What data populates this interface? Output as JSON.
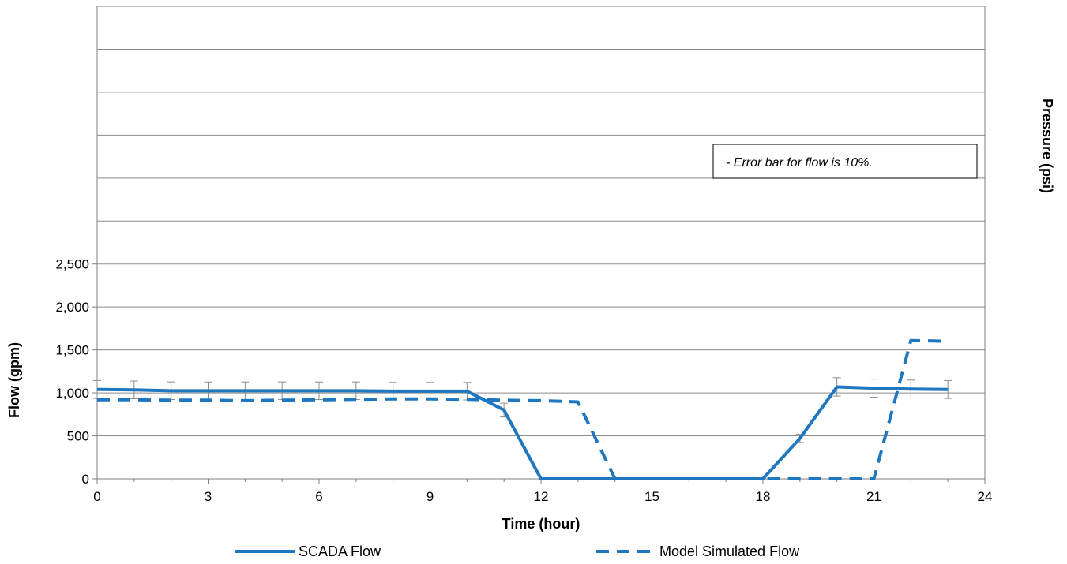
{
  "chart_data": {
    "type": "line",
    "xlabel": "Time (hour)",
    "ylabel": "Flow (gpm)",
    "y2label": "Pressure (psi)",
    "xlim": [
      0,
      24
    ],
    "ylim": [
      0,
      5500
    ],
    "x_ticks": [
      0,
      3,
      6,
      9,
      12,
      15,
      18,
      21,
      24
    ],
    "x_tick_labels": [
      "0",
      "3",
      "6",
      "9",
      "12",
      "15",
      "18",
      "21",
      "24"
    ],
    "y_ticks": [
      0,
      500,
      1000,
      1500,
      2000,
      2500
    ],
    "y_tick_labels": [
      "0",
      "500",
      "1,000",
      "1,500",
      "2,000",
      "2,500"
    ],
    "y_gridlines": [
      0,
      500,
      1000,
      1500,
      2000,
      2500,
      3000,
      3500,
      4000,
      4500,
      5000,
      5500
    ],
    "grid": true,
    "legend_position": "bottom",
    "annotation": "- Error bar for flow is 10%.",
    "error_bar_percent": 10,
    "series": [
      {
        "name": "SCADA Flow",
        "color": "#1f77c0",
        "style": "solid",
        "error_bars": true,
        "x": [
          0,
          1,
          2,
          3,
          4,
          5,
          6,
          7,
          8,
          9,
          10,
          11,
          12,
          13,
          14,
          15,
          16,
          17,
          18,
          19,
          20,
          21,
          22,
          23
        ],
        "values": [
          1040,
          1035,
          1025,
          1025,
          1025,
          1025,
          1025,
          1025,
          1020,
          1020,
          1020,
          800,
          0,
          0,
          0,
          0,
          0,
          0,
          0,
          470,
          1070,
          1055,
          1045,
          1040
        ]
      },
      {
        "name": "Model Simulated Flow",
        "color": "#1f77c0",
        "style": "dashed",
        "error_bars": false,
        "x": [
          0,
          1,
          2,
          3,
          4,
          5,
          6,
          7,
          8,
          9,
          10,
          11,
          12,
          13,
          14,
          15,
          16,
          17,
          18,
          19,
          20,
          21,
          22,
          23
        ],
        "values": [
          920,
          920,
          915,
          915,
          910,
          915,
          920,
          925,
          930,
          930,
          925,
          915,
          910,
          895,
          0,
          0,
          0,
          0,
          0,
          0,
          0,
          0,
          1610,
          1600
        ]
      }
    ]
  }
}
